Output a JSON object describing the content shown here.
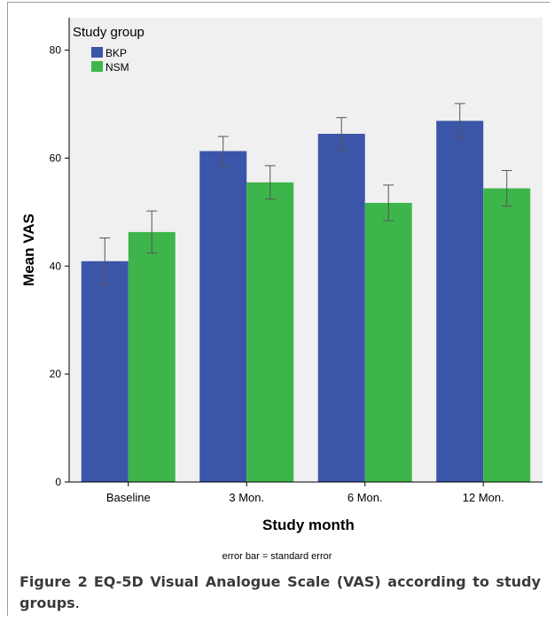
{
  "chart_data": {
    "type": "bar",
    "title": "",
    "xlabel": "Study month",
    "ylabel": "Mean VAS",
    "ylim": [
      0,
      86
    ],
    "yticks": [
      0,
      20,
      40,
      60,
      80
    ],
    "categories": [
      "Baseline",
      "3 Mon.",
      "6 Mon.",
      "12 Mon."
    ],
    "legend_title": "Study group",
    "legend_position": "top-left",
    "grid": false,
    "series": [
      {
        "name": "BKP",
        "color": "#3b55a8",
        "values": [
          40.9,
          61.3,
          64.5,
          66.9
        ],
        "errors": [
          4.3,
          2.7,
          3.0,
          3.2
        ]
      },
      {
        "name": "NSM",
        "color": "#3db54a",
        "values": [
          46.3,
          55.5,
          51.7,
          54.4
        ],
        "errors": [
          3.9,
          3.1,
          3.3,
          3.3
        ]
      }
    ],
    "note": "error bar = standard error"
  },
  "caption": {
    "label": "Figure 2",
    "text": "EQ-5D Visual Analogue Scale (VAS) according to study groups"
  }
}
